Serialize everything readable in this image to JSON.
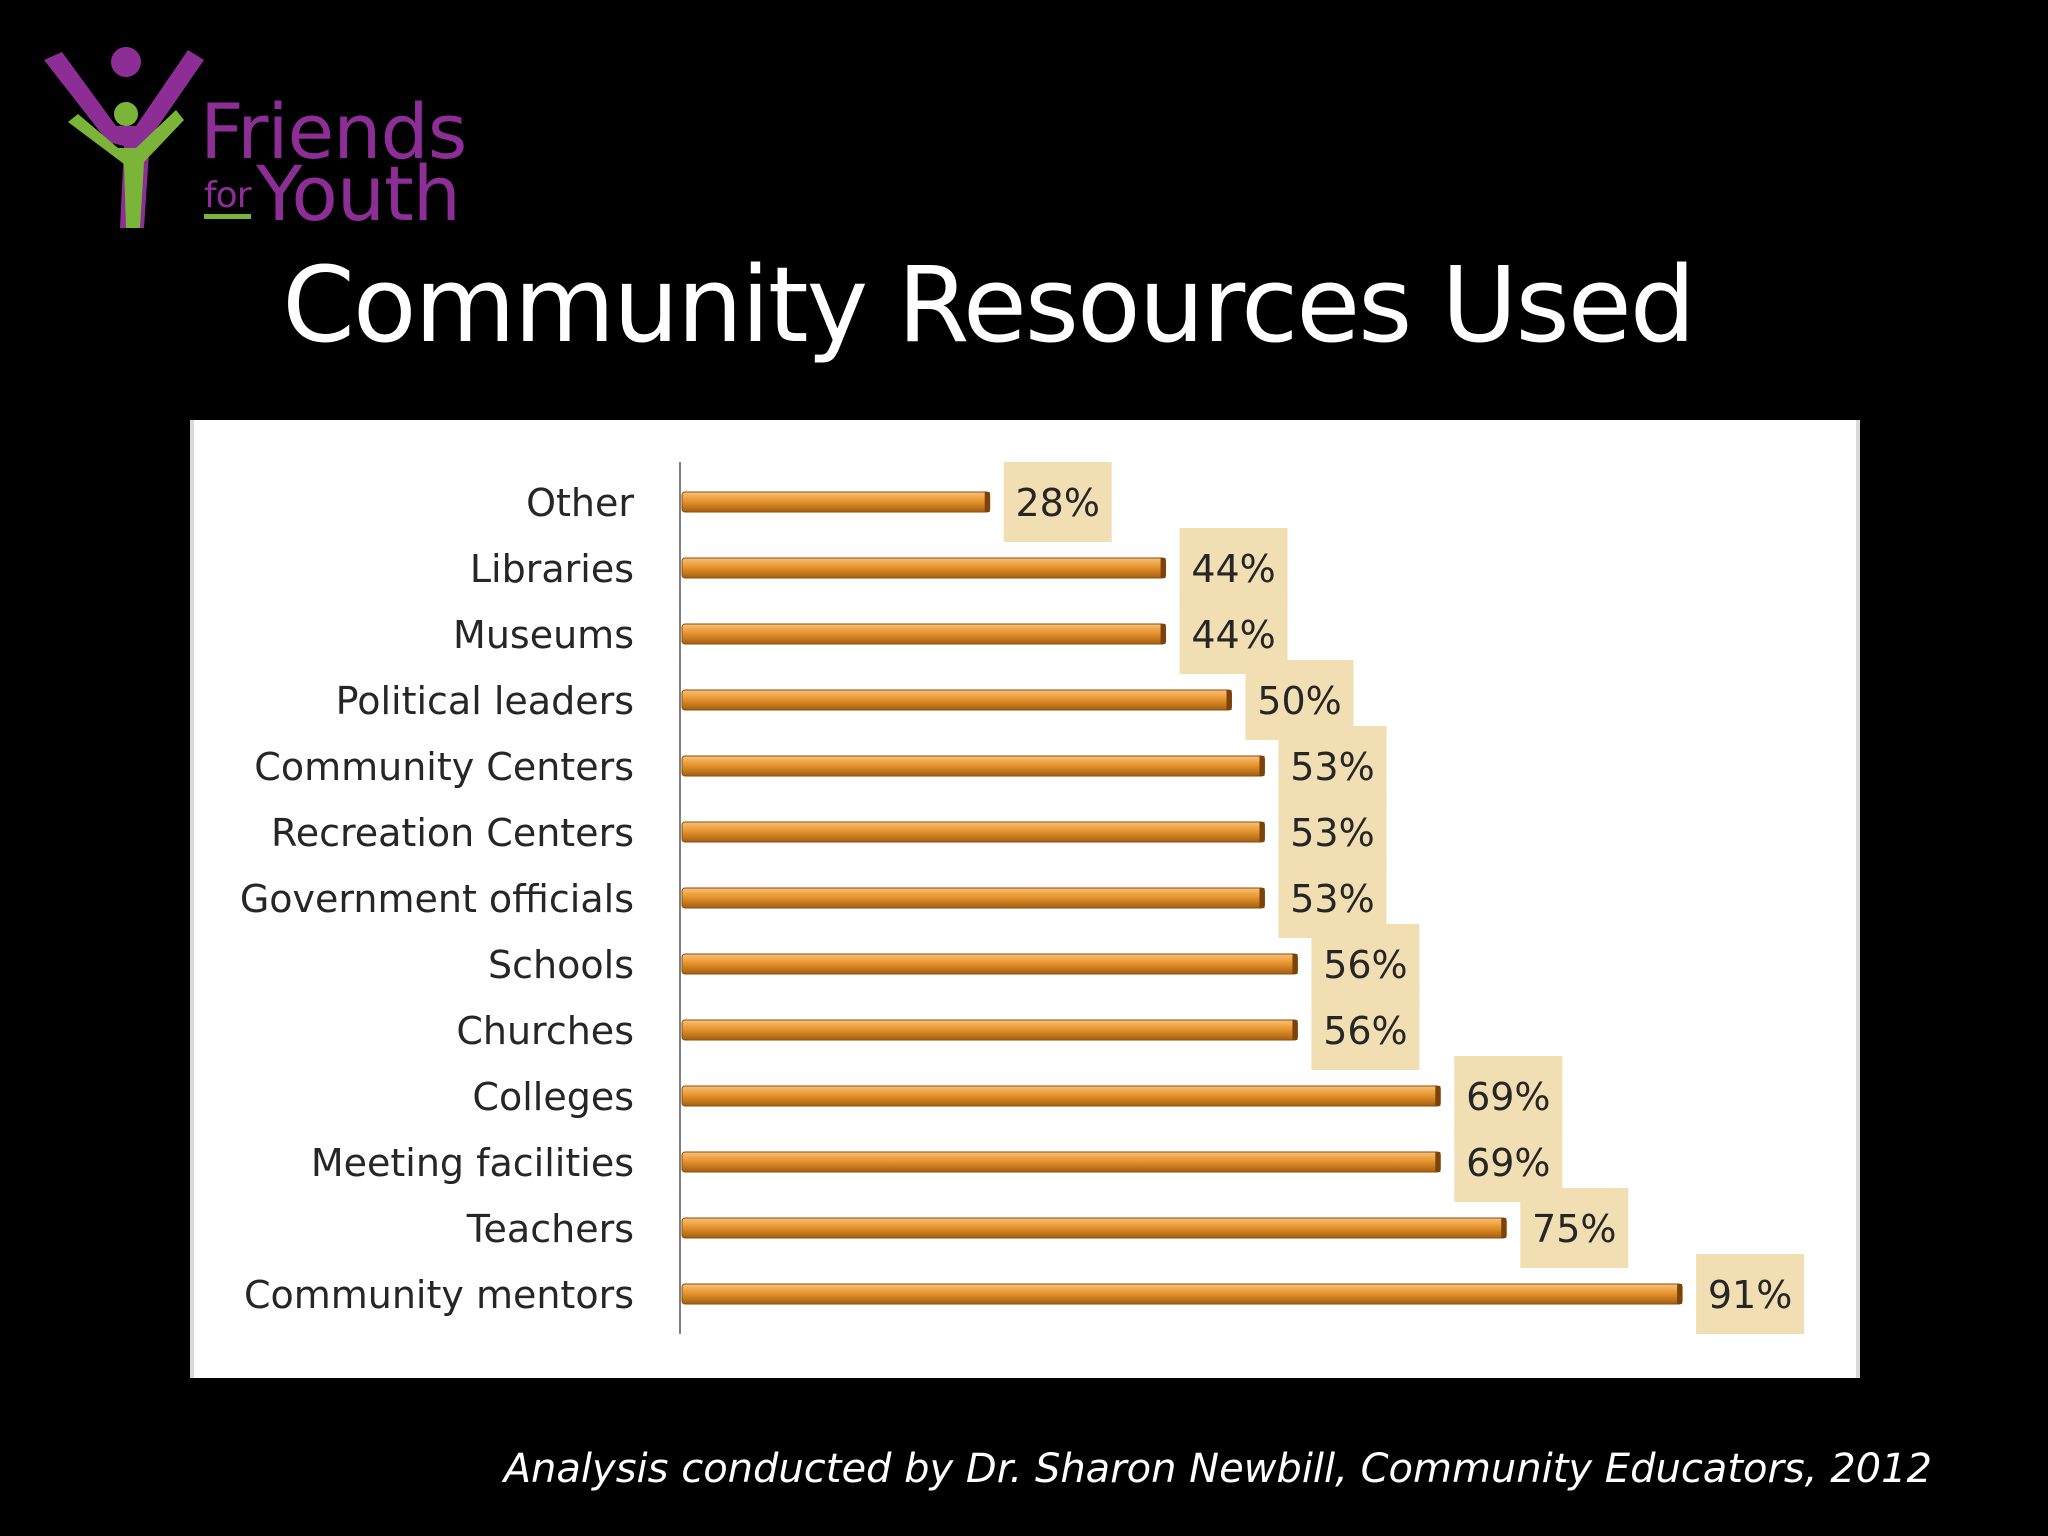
{
  "logo": {
    "line1": "Friends",
    "line2a": "for",
    "line2b": "Youth",
    "purple": "#8d2e96",
    "green": "#7ab539"
  },
  "title": "Community Resources Used",
  "caption": "Analysis conducted by Dr. Sharon Newbill, Community Educators, 2012",
  "chart_data": {
    "type": "bar",
    "orientation": "horizontal",
    "categories": [
      "Other",
      "Libraries",
      "Museums",
      "Political leaders",
      "Community Centers",
      "Recreation Centers",
      "Government officials",
      "Schools",
      "Churches",
      "Colleges",
      "Meeting facilities",
      "Teachers",
      "Community mentors"
    ],
    "values": [
      28,
      44,
      44,
      50,
      53,
      53,
      53,
      56,
      56,
      69,
      69,
      75,
      91
    ],
    "data_labels": [
      "28%",
      "44%",
      "44%",
      "50%",
      "53%",
      "53%",
      "53%",
      "56%",
      "56%",
      "69%",
      "69%",
      "75%",
      "91%"
    ],
    "xlim": [
      0,
      100
    ],
    "grid": false,
    "bar_color": "#e8952e",
    "label_background": "#f1dfb3"
  }
}
